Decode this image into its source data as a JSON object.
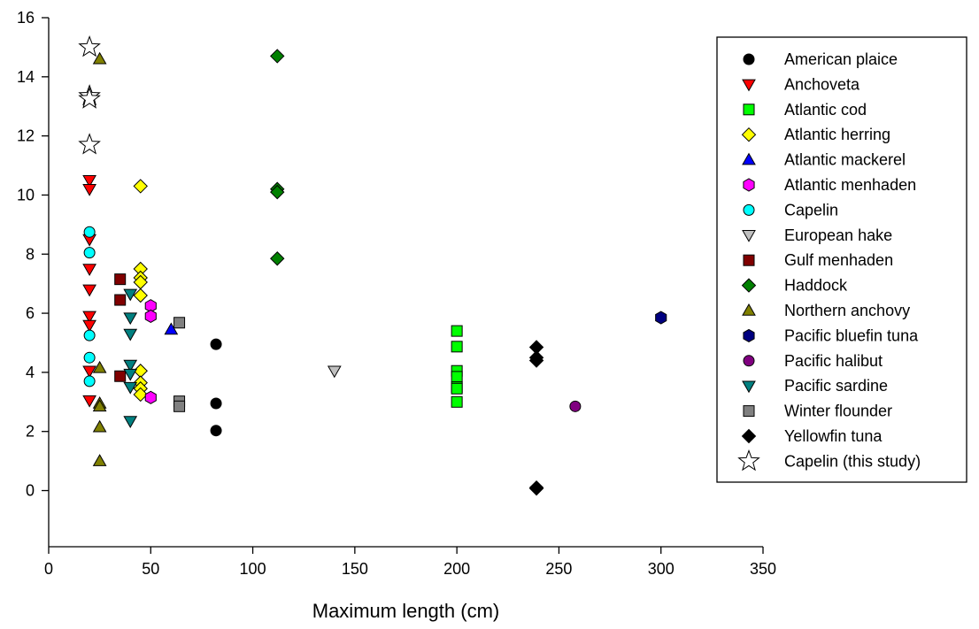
{
  "chart_data": {
    "type": "scatter",
    "xlabel": "Maximum length (cm)",
    "ylabel": "",
    "xlim": [
      0,
      350
    ],
    "ylim": [
      -1.9,
      16
    ],
    "x_ticks": [
      0,
      50,
      100,
      150,
      200,
      250,
      300,
      350
    ],
    "y_ticks": [
      0,
      2,
      4,
      6,
      8,
      10,
      12,
      14,
      16
    ],
    "grid": false,
    "legend_position": "right",
    "series": [
      {
        "name": "American plaice",
        "marker": "circle",
        "color": "#000000",
        "points": [
          [
            82,
            4.95
          ],
          [
            82,
            2.95
          ],
          [
            82,
            2.03
          ]
        ]
      },
      {
        "name": "Anchoveta",
        "marker": "triangle-down",
        "color": "#ff0000",
        "points": [
          [
            20,
            10.5
          ],
          [
            20,
            10.2
          ],
          [
            20,
            8.5
          ],
          [
            20,
            7.5
          ],
          [
            20,
            6.8
          ],
          [
            20,
            5.9
          ],
          [
            20,
            5.6
          ],
          [
            20,
            4.05
          ],
          [
            20,
            3.05
          ]
        ]
      },
      {
        "name": "Atlantic cod",
        "marker": "square",
        "color": "#00ff00",
        "points": [
          [
            200,
            5.4
          ],
          [
            200,
            4.87
          ],
          [
            200,
            4.05
          ],
          [
            200,
            3.85
          ],
          [
            200,
            3.5
          ],
          [
            200,
            3.45
          ],
          [
            200,
            3.0
          ]
        ]
      },
      {
        "name": "Atlantic herring",
        "marker": "diamond",
        "color": "#ffff00",
        "points": [
          [
            45,
            10.3
          ],
          [
            45,
            7.5
          ],
          [
            45,
            7.2
          ],
          [
            45,
            7.05
          ],
          [
            45,
            6.6
          ],
          [
            45,
            4.05
          ],
          [
            45,
            3.65
          ],
          [
            45,
            3.45
          ],
          [
            45,
            3.25
          ]
        ]
      },
      {
        "name": "Atlantic mackerel",
        "marker": "triangle-up",
        "color": "#0000ff",
        "points": [
          [
            60,
            5.45
          ]
        ]
      },
      {
        "name": "Atlantic menhaden",
        "marker": "hexagon",
        "color": "#ff00ff",
        "points": [
          [
            50,
            6.25
          ],
          [
            50,
            5.9
          ],
          [
            50,
            3.15
          ]
        ]
      },
      {
        "name": "Capelin",
        "marker": "circle",
        "color": "#00ffff",
        "points": [
          [
            20,
            8.75
          ],
          [
            20,
            8.05
          ],
          [
            20,
            5.25
          ],
          [
            20,
            4.5
          ],
          [
            20,
            3.7
          ]
        ]
      },
      {
        "name": "European hake",
        "marker": "triangle-down",
        "color": "#c0c0c0",
        "points": [
          [
            140,
            4.05
          ]
        ]
      },
      {
        "name": "Gulf menhaden",
        "marker": "square",
        "color": "#800000",
        "points": [
          [
            35,
            7.15
          ],
          [
            35,
            6.45
          ],
          [
            35,
            3.87
          ]
        ]
      },
      {
        "name": "Haddock",
        "marker": "diamond",
        "color": "#008000",
        "points": [
          [
            112,
            14.7
          ],
          [
            112,
            10.2
          ],
          [
            112,
            10.1
          ],
          [
            112,
            7.85
          ]
        ]
      },
      {
        "name": "Northern anchovy",
        "marker": "triangle-up",
        "color": "#808000",
        "points": [
          [
            25,
            14.6
          ],
          [
            25,
            4.15
          ],
          [
            25,
            2.95
          ],
          [
            25,
            2.85
          ],
          [
            25,
            2.15
          ],
          [
            25,
            1.0
          ]
        ]
      },
      {
        "name": "Pacific bluefin tuna",
        "marker": "hexagon",
        "color": "#000080",
        "points": [
          [
            300,
            5.85
          ]
        ]
      },
      {
        "name": "Pacific halibut",
        "marker": "circle",
        "color": "#800080",
        "points": [
          [
            258,
            2.85
          ]
        ]
      },
      {
        "name": "Pacific sardine",
        "marker": "triangle-down",
        "color": "#008080",
        "points": [
          [
            40,
            6.65
          ],
          [
            40,
            5.85
          ],
          [
            40,
            5.3
          ],
          [
            40,
            4.25
          ],
          [
            40,
            3.95
          ],
          [
            40,
            3.5
          ],
          [
            40,
            2.35
          ]
        ]
      },
      {
        "name": "Winter flounder",
        "marker": "square",
        "color": "#808080",
        "points": [
          [
            64,
            5.68
          ],
          [
            64,
            3.02
          ],
          [
            64,
            2.85
          ]
        ]
      },
      {
        "name": "Yellowfin tuna",
        "marker": "diamond",
        "color": "#000000",
        "points": [
          [
            239,
            4.85
          ],
          [
            239,
            4.5
          ],
          [
            239,
            4.4
          ],
          [
            239,
            0.1
          ],
          [
            239,
            0.07
          ]
        ]
      },
      {
        "name": "Capelin (this study)",
        "marker": "star",
        "color": "#ffffff",
        "points": [
          [
            20,
            15.0
          ],
          [
            20,
            13.35
          ],
          [
            20,
            13.25
          ],
          [
            20,
            11.7
          ]
        ]
      }
    ]
  }
}
